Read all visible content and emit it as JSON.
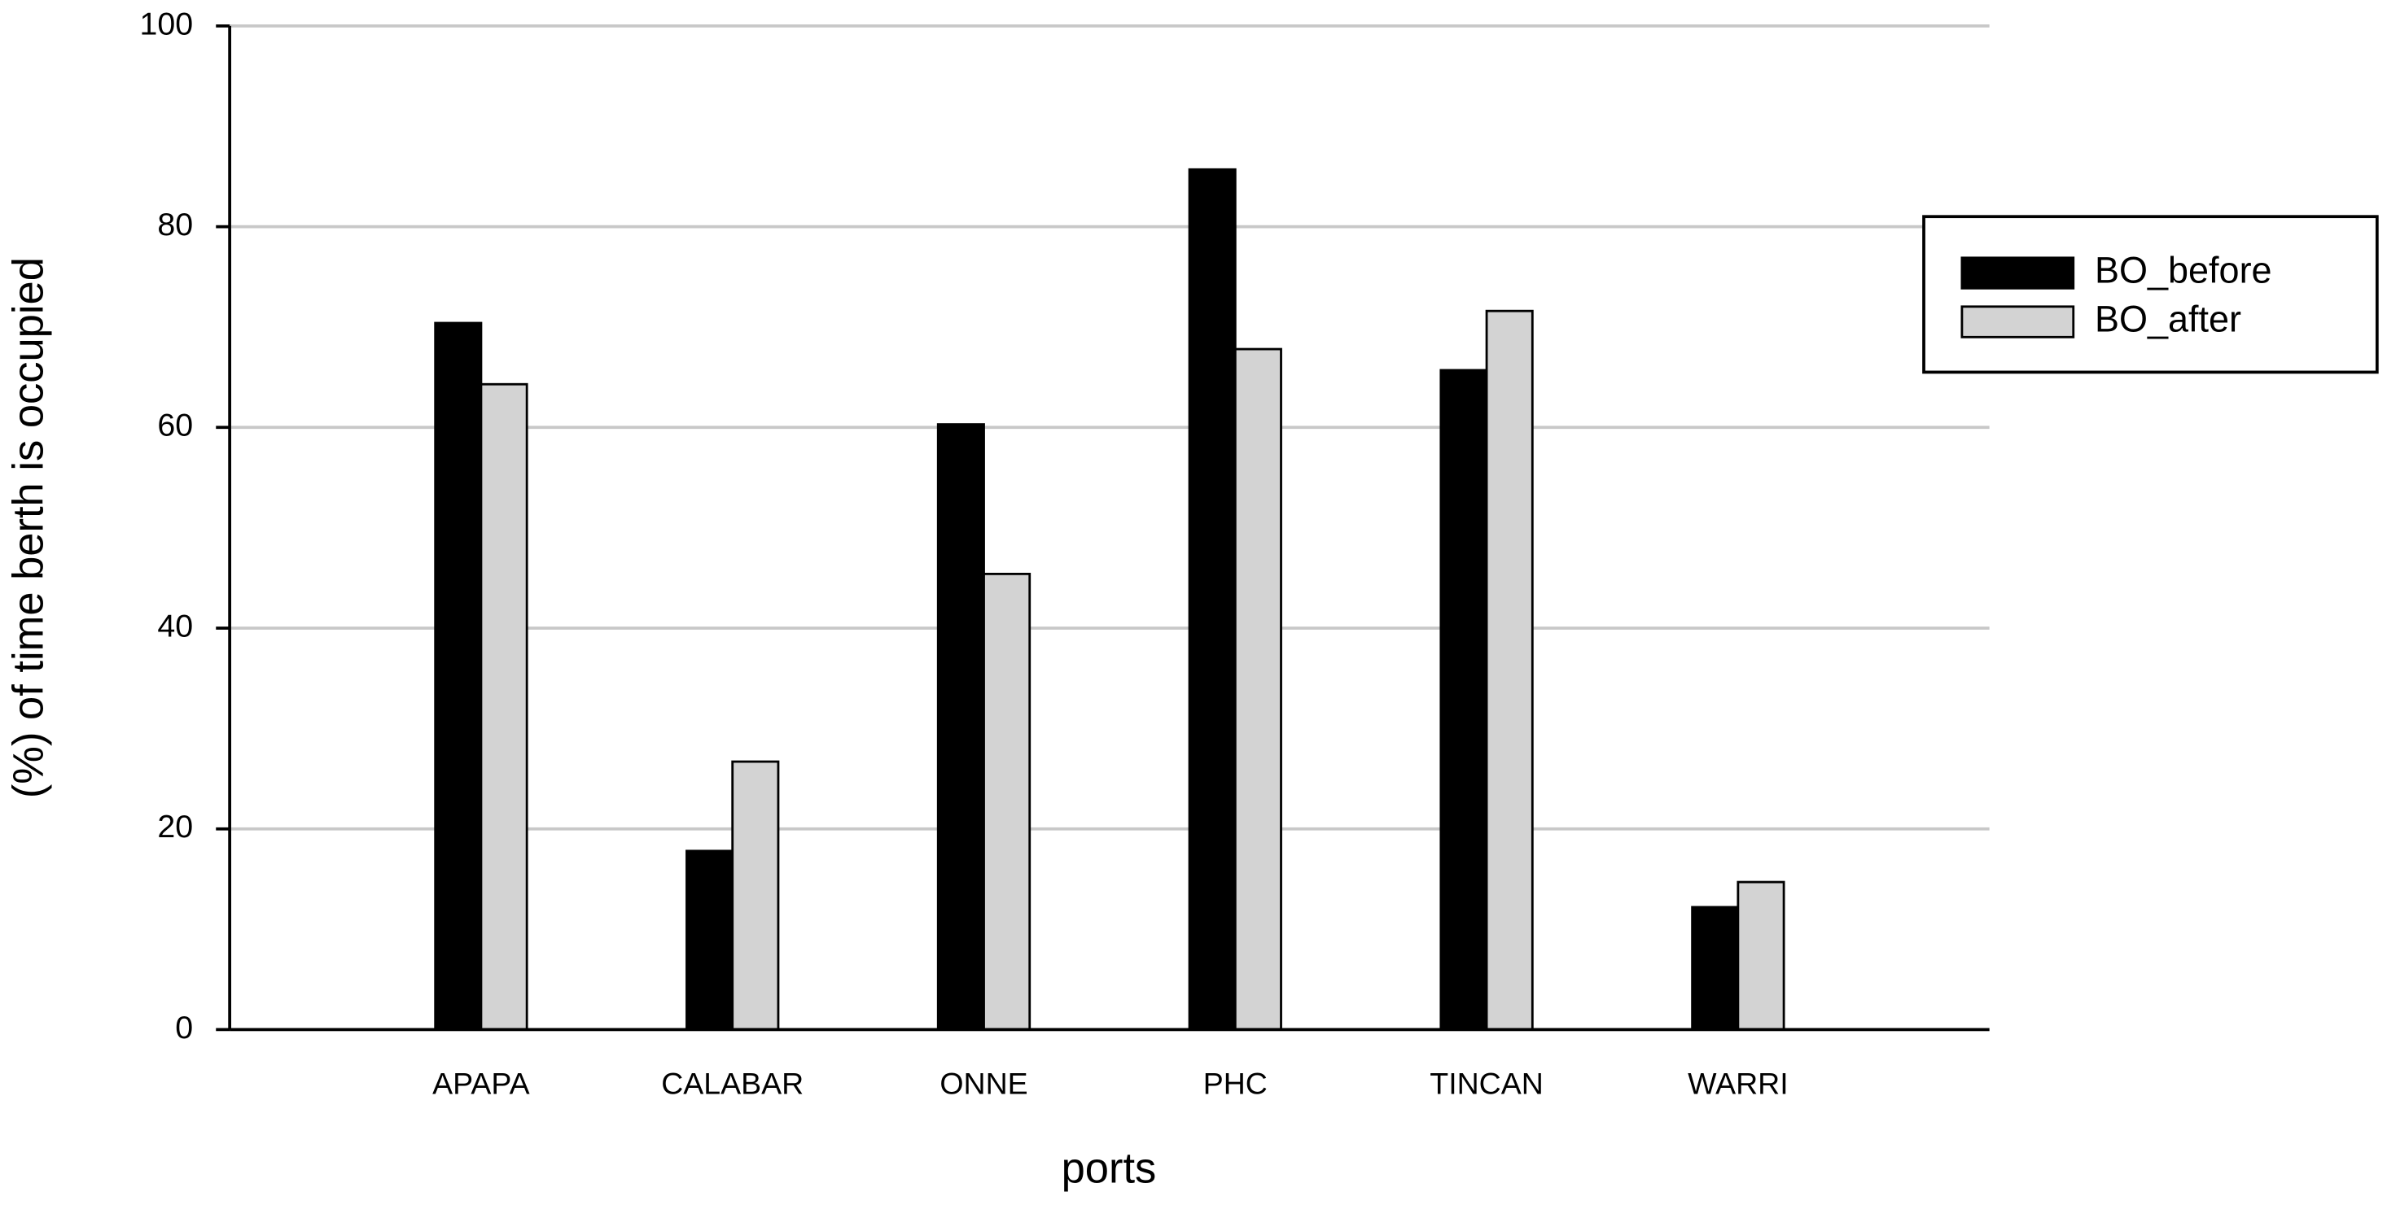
{
  "chart_data": {
    "type": "bar",
    "x_label": "ports",
    "y_label": "(%) of time berth is occupied",
    "categories": [
      "APAPA",
      "CALABAR",
      "ONNE",
      "PHC",
      "TINCAN",
      "WARRI"
    ],
    "series": [
      {
        "name": "BO_before",
        "color": "#000000",
        "values": [
          70.4,
          17.8,
          60.3,
          85.7,
          65.7,
          12.2
        ]
      },
      {
        "name": "BO_after",
        "color": "#d3d3d3",
        "values": [
          64.3,
          26.7,
          45.4,
          67.8,
          71.6,
          14.7
        ]
      }
    ],
    "ylim": [
      0,
      100
    ],
    "yticks": [
      0,
      20,
      40,
      60,
      80,
      100
    ],
    "grid": true,
    "legend": "right"
  }
}
